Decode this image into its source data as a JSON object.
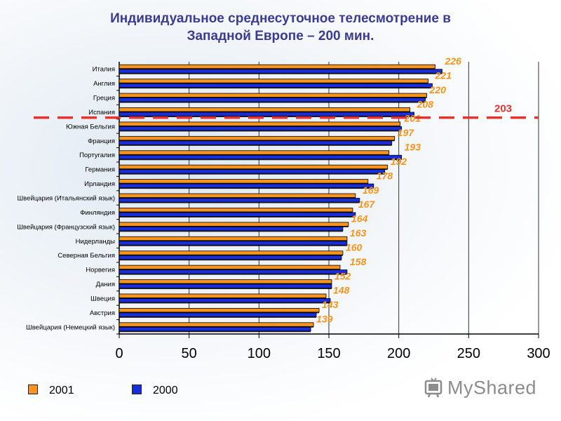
{
  "title": {
    "line1": "Индивидуальное среднесуточное телесмотрение в",
    "line2": "Западной Европе – 200 мин."
  },
  "chart_data": {
    "type": "bar",
    "orientation": "horizontal",
    "categories": [
      "Италия",
      "Англия",
      "Греция",
      "Испания",
      "Южная Бельгия",
      "Франция",
      "Португалия",
      "Германия",
      "Ирландия",
      "Швейцария (Итальянский язык)",
      "Финляндия",
      "Швейцария (Французский язык)",
      "Нидерланды",
      "Северная Бельгия",
      "Норвегия",
      "Дания",
      "Швеция",
      "Австрия",
      "Швейцария (Немецкий язык)"
    ],
    "series": [
      {
        "name": "2001",
        "color": "#f7941d",
        "values": [
          226,
          221,
          220,
          208,
          201,
          197,
          193,
          192,
          178,
          169,
          167,
          164,
          163,
          160,
          158,
          152,
          148,
          143,
          139
        ],
        "labels": [
          "226",
          "221",
          "220",
          "208",
          "201",
          "197",
          "193",
          "192",
          "178",
          "169",
          "167",
          "164",
          "163",
          "160",
          "158",
          "152",
          "148",
          "143",
          "139"
        ]
      },
      {
        "name": "2000",
        "color": "#1a2ddb",
        "values": [
          231,
          224,
          219,
          211,
          202,
          195,
          202,
          190,
          182,
          172,
          169,
          160,
          163,
          159,
          163,
          152,
          151,
          141,
          137
        ]
      }
    ],
    "xlim": [
      0,
      300
    ],
    "xticks": [
      "0",
      "50",
      "100",
      "150",
      "200",
      "250",
      "300"
    ],
    "xtick_values": [
      0,
      50,
      100,
      150,
      200,
      250,
      300
    ],
    "grid": "vertical",
    "reference_line": {
      "value": 203,
      "label": "203",
      "color": "#e5322d",
      "after_category": "Испания"
    },
    "label_color": "#f7941d",
    "legend": "bottom-left"
  },
  "legend": {
    "items": [
      {
        "label": "2001",
        "color": "#f7941d"
      },
      {
        "label": "2000",
        "color": "#1a2ddb"
      }
    ]
  },
  "logo": {
    "text": "MyShared",
    "color": "#8c8c8c"
  }
}
